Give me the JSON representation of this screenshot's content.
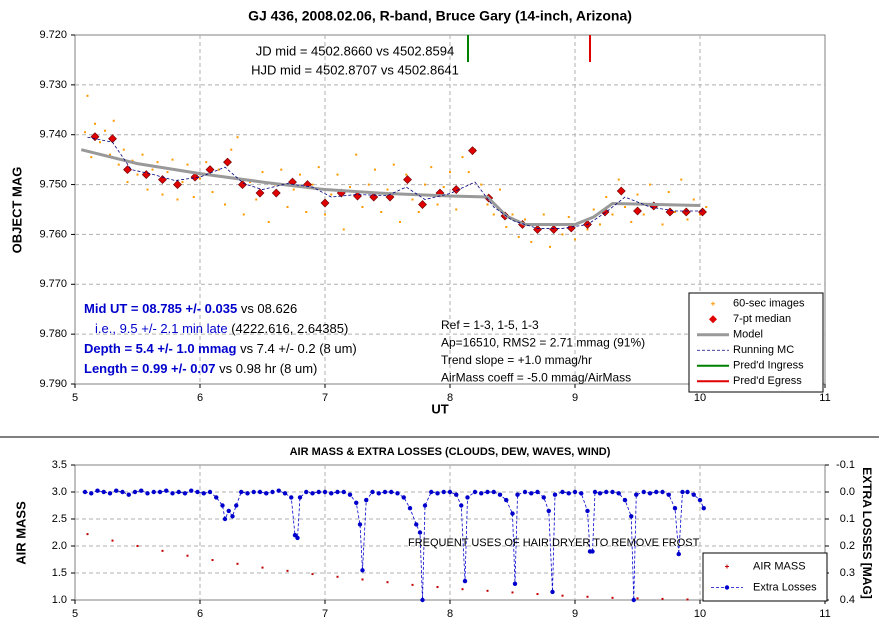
{
  "chart_data": [
    {
      "type": "scatter",
      "title": "GJ 436, 2008.02.06, R-band, Bruce Gary (14-inch, Arizona)",
      "x_label": "UT",
      "y_label": "OBJECT MAG",
      "xlim": [
        5,
        11
      ],
      "xticks": [
        5,
        6,
        7,
        8,
        9,
        10,
        11
      ],
      "ylim": [
        9.72,
        9.79
      ],
      "yreverse": true,
      "yticks": [
        {
          "value": 9.72,
          "label": "9.720"
        },
        {
          "value": 9.73,
          "label": "9.730"
        },
        {
          "value": 9.74,
          "label": "9.740"
        },
        {
          "value": 9.75,
          "label": "9.750"
        },
        {
          "value": 9.76,
          "label": "9.760"
        },
        {
          "value": 9.77,
          "label": "9.770"
        },
        {
          "value": 9.78,
          "label": "9.780"
        },
        {
          "value": 9.79,
          "label": "9.790"
        }
      ],
      "grid": true,
      "legend": "lower right",
      "annotations": [
        "JD mid = 4502.8660 vs 4502.8594",
        "HJD mid = 4502.8707 vs 4502.8641"
      ],
      "results": [
        [
          "Mid UT = 08.785 +/- 0.035",
          " vs 08.626"
        ],
        [
          "i.e., 9.5 +/- 2.1 min late",
          " (4222.616, 2.64385)"
        ],
        [
          "Depth = 5.4 +/- 1.0 mmag",
          " vs 7.4 +/- 0.2 (8 um)"
        ],
        [
          "Length = 0.99 +/- 0.07",
          " vs 0.98 hr (8 um)"
        ]
      ],
      "notes": [
        "Ref = 1-3, 1-5, 1-3",
        "Ap=16510, RMS2 = 2.71 mmag (91%)",
        "Trend slope = +1.0 mmag/hr",
        "AirMass coeff = -5.0 mmag/AirMass"
      ],
      "series": [
        {
          "name": "60-sec images",
          "color": "#ff9900",
          "style": "dots",
          "x": [
            5.08,
            5.1,
            5.13,
            5.16,
            5.2,
            5.24,
            5.28,
            5.31,
            5.35,
            5.39,
            5.42,
            5.46,
            5.5,
            5.54,
            5.58,
            5.62,
            5.66,
            5.7,
            5.74,
            5.78,
            5.82,
            5.86,
            5.9,
            5.95,
            6.0,
            6.05,
            6.1,
            6.15,
            6.2,
            6.25,
            6.3,
            6.35,
            6.4,
            6.45,
            6.5,
            6.55,
            6.6,
            6.65,
            6.7,
            6.75,
            6.8,
            6.85,
            6.9,
            6.95,
            7.0,
            7.05,
            7.1,
            7.15,
            7.2,
            7.25,
            7.3,
            7.35,
            7.4,
            7.45,
            7.5,
            7.55,
            7.6,
            7.65,
            7.7,
            7.75,
            7.8,
            7.85,
            7.9,
            7.95,
            8.0,
            8.05,
            8.1,
            8.15,
            8.2,
            8.25,
            8.3,
            8.35,
            8.4,
            8.45,
            8.5,
            8.55,
            8.6,
            8.65,
            8.7,
            8.75,
            8.8,
            8.85,
            8.9,
            8.95,
            9.0,
            9.05,
            9.1,
            9.15,
            9.2,
            9.25,
            9.3,
            9.35,
            9.4,
            9.45,
            9.5,
            9.55,
            9.6,
            9.65,
            9.7,
            9.75,
            9.8,
            9.85,
            9.9,
            9.95,
            10.0,
            10.05
          ],
          "values": [
            9.7395,
            9.7322,
            9.7445,
            9.7378,
            9.7415,
            9.7392,
            9.744,
            9.7372,
            9.746,
            9.743,
            9.7495,
            9.7452,
            9.748,
            9.744,
            9.751,
            9.747,
            9.7455,
            9.752,
            9.7475,
            9.745,
            9.753,
            9.7495,
            9.746,
            9.7525,
            9.7488,
            9.7455,
            9.7515,
            9.747,
            9.754,
            9.743,
            9.7405,
            9.756,
            9.7495,
            9.753,
            9.7475,
            9.7575,
            9.75,
            9.747,
            9.7545,
            9.751,
            9.748,
            9.7555,
            9.75,
            9.7465,
            9.756,
            9.752,
            9.748,
            9.759,
            9.7505,
            9.744,
            9.7545,
            9.75,
            9.747,
            9.7555,
            9.751,
            9.746,
            9.7575,
            9.748,
            9.753,
            9.7555,
            9.75,
            9.7465,
            9.754,
            9.7505,
            9.7475,
            9.755,
            9.7445,
            9.7475,
            9.743,
            9.75,
            9.754,
            9.756,
            9.751,
            9.7585,
            9.756,
            9.7605,
            9.757,
            9.7615,
            9.759,
            9.756,
            9.7625,
            9.758,
            9.76,
            9.7565,
            9.761,
            9.7575,
            9.759,
            9.755,
            9.758,
            9.7525,
            9.756,
            9.749,
            9.7545,
            9.7575,
            9.752,
            9.756,
            9.75,
            9.7545,
            9.758,
            9.7515,
            9.7555,
            9.749,
            9.757,
            9.753,
            9.756,
            9.7545
          ]
        },
        {
          "name": "7-pt median",
          "color": "#e00000",
          "style": "diamonds",
          "x": [
            5.16,
            5.3,
            5.42,
            5.57,
            5.7,
            5.82,
            5.96,
            6.08,
            6.22,
            6.34,
            6.48,
            6.61,
            6.74,
            6.86,
            7.0,
            7.13,
            7.26,
            7.39,
            7.52,
            7.66,
            7.78,
            7.92,
            8.05,
            8.18,
            8.31,
            8.44,
            8.58,
            8.7,
            8.83,
            8.97,
            9.1,
            9.24,
            9.37,
            9.5,
            9.63,
            9.76,
            9.89,
            10.02
          ],
          "values": [
            9.7404,
            9.7408,
            9.747,
            9.748,
            9.749,
            9.75,
            9.7485,
            9.747,
            9.7455,
            9.75,
            9.7517,
            9.7517,
            9.7495,
            9.75,
            9.7537,
            9.7517,
            9.7523,
            9.7525,
            9.7525,
            9.749,
            9.754,
            9.7517,
            9.751,
            9.7432,
            9.7527,
            9.7563,
            9.758,
            9.759,
            9.759,
            9.7587,
            9.758,
            9.7555,
            9.7513,
            9.7553,
            9.7543,
            9.7555,
            9.7555,
            9.7555
          ]
        },
        {
          "name": "Model",
          "color": "#999999",
          "style": "line",
          "x": [
            5.05,
            5.5,
            6,
            6.5,
            7,
            7.5,
            8,
            8.3,
            8.45,
            8.6,
            9.0,
            9.15,
            9.3,
            10.0
          ],
          "values": [
            9.743,
            9.7458,
            9.7478,
            9.7495,
            9.751,
            9.7518,
            9.7523,
            9.7525,
            9.7563,
            9.758,
            9.758,
            9.7565,
            9.7538,
            9.7542
          ]
        },
        {
          "name": "Running MC",
          "color": "#000080",
          "style": "dashed",
          "x": [
            5.1,
            5.3,
            5.45,
            5.6,
            5.8,
            6.0,
            6.2,
            6.35,
            6.5,
            6.7,
            6.9,
            7.05,
            7.25,
            7.5,
            7.65,
            7.8,
            8.0,
            8.2,
            8.35,
            8.5,
            8.7,
            8.9,
            9.1,
            9.25,
            9.4,
            9.6,
            9.8,
            10.02
          ],
          "values": [
            9.7405,
            9.7415,
            9.747,
            9.7478,
            9.7492,
            9.7485,
            9.7465,
            9.7498,
            9.751,
            9.7498,
            9.7505,
            9.7525,
            9.752,
            9.7522,
            9.7505,
            9.753,
            9.7518,
            9.7495,
            9.7545,
            9.7572,
            9.7588,
            9.7588,
            9.758,
            9.7555,
            9.7525,
            9.7545,
            9.7553,
            9.7553
          ]
        },
        {
          "name": "Pred'd Ingress",
          "color": "#008000",
          "style": "vline",
          "x": 8.144
        },
        {
          "name": "Pred'd Egress",
          "color": "#e00000",
          "style": "vline",
          "x": 9.12
        }
      ]
    },
    {
      "type": "scatter",
      "title": "AIR MASS & EXTRA LOSSES (CLOUDS, DEW, WAVES, WIND)",
      "y_label": "AIR MASS",
      "y2_label": "EXTRA LOSSES [MAG]",
      "xlim": [
        5,
        11
      ],
      "xticks": [
        5,
        6,
        7,
        8,
        9,
        10,
        11
      ],
      "ylim": [
        1.0,
        3.5
      ],
      "yticks": [
        {
          "value": 1.0,
          "label": "1.0"
        },
        1.5,
        {
          "value": 2.0,
          "label": "2.0"
        },
        2.5,
        {
          "value": 3.0,
          "label": "3.0"
        },
        3.5
      ],
      "y2lim": [
        -0.1,
        0.4
      ],
      "y2reverse": true,
      "y2ticks": [
        -0.1,
        {
          "value": 0,
          "label": "0.0"
        },
        0.1,
        0.2,
        0.3,
        0.4
      ],
      "grid": true,
      "legend": "lower right",
      "annotations": [
        "FREQUENT USES OF HAIR DRYER TO REMOVE FROST"
      ],
      "series": [
        {
          "name": "AIR MASS",
          "color": "#c00000",
          "style": "dots",
          "x": [
            5.1,
            5.3,
            5.5,
            5.7,
            5.9,
            6.1,
            6.3,
            6.5,
            6.7,
            6.9,
            7.1,
            7.3,
            7.5,
            7.7,
            7.9,
            8.1,
            8.3,
            8.5,
            8.7,
            8.9,
            9.1,
            9.3,
            9.5,
            9.7,
            9.9,
            10.03
          ],
          "values": [
            2.22,
            2.1,
            2.0,
            1.91,
            1.82,
            1.74,
            1.67,
            1.6,
            1.54,
            1.48,
            1.43,
            1.38,
            1.33,
            1.28,
            1.24,
            1.2,
            1.17,
            1.14,
            1.11,
            1.08,
            1.06,
            1.04,
            1.03,
            1.02,
            1.01,
            1.01
          ]
        },
        {
          "name": "Extra Losses",
          "color": "#0000cc",
          "style": "dashed-markers",
          "axis": "y2",
          "x": [
            5.08,
            5.13,
            5.18,
            5.23,
            5.28,
            5.33,
            5.38,
            5.43,
            5.48,
            5.53,
            5.58,
            5.63,
            5.68,
            5.73,
            5.78,
            5.83,
            5.88,
            5.93,
            5.98,
            6.03,
            6.08,
            6.13,
            6.18,
            6.2,
            6.23,
            6.26,
            6.29,
            6.33,
            6.38,
            6.43,
            6.48,
            6.53,
            6.58,
            6.63,
            6.68,
            6.73,
            6.76,
            6.78,
            6.8,
            6.85,
            6.9,
            6.95,
            7.0,
            7.05,
            7.1,
            7.15,
            7.2,
            7.25,
            7.28,
            7.3,
            7.33,
            7.38,
            7.43,
            7.48,
            7.53,
            7.58,
            7.63,
            7.68,
            7.73,
            7.76,
            7.78,
            7.8,
            7.85,
            7.9,
            7.95,
            8.0,
            8.05,
            8.09,
            8.12,
            8.14,
            8.2,
            8.25,
            8.3,
            8.35,
            8.4,
            8.45,
            8.5,
            8.52,
            8.54,
            8.6,
            8.65,
            8.7,
            8.75,
            8.79,
            8.82,
            8.84,
            8.9,
            8.95,
            9.0,
            9.05,
            9.1,
            9.12,
            9.14,
            9.16,
            9.2,
            9.25,
            9.3,
            9.35,
            9.4,
            9.45,
            9.47,
            9.49,
            9.55,
            9.6,
            9.65,
            9.7,
            9.75,
            9.8,
            9.83,
            9.86,
            9.9,
            9.95,
            10.0,
            10.03
          ],
          "values": [
            0.0,
            0.005,
            -0.005,
            0.0,
            0.005,
            -0.005,
            0.0,
            0.01,
            0.0,
            -0.005,
            0.005,
            0.0,
            0.0,
            -0.005,
            0.005,
            0.0,
            0.005,
            -0.005,
            0.0,
            0.005,
            0.0,
            0.02,
            0.05,
            0.1,
            0.07,
            0.09,
            0.05,
            0.0,
            0.005,
            0.0,
            0.0,
            0.005,
            0.0,
            -0.005,
            0.005,
            0.02,
            0.16,
            0.17,
            0.02,
            0.0,
            0.005,
            0.0,
            0.0,
            0.005,
            0.0,
            0.0,
            0.01,
            0.04,
            0.12,
            0.29,
            0.03,
            0.0,
            0.005,
            0.0,
            0.0,
            0.005,
            0.02,
            0.06,
            0.12,
            0.15,
            0.4,
            0.05,
            0.0,
            0.005,
            0.0,
            0.0,
            0.01,
            0.05,
            0.33,
            0.02,
            0.0,
            0.005,
            0.0,
            0.0,
            0.01,
            0.03,
            0.08,
            0.34,
            0.01,
            0.0,
            0.005,
            0.0,
            0.02,
            0.07,
            0.37,
            0.01,
            0.0,
            0.005,
            0.0,
            0.005,
            0.07,
            0.22,
            0.22,
            0.0,
            0.005,
            0.0,
            0.0,
            0.005,
            0.03,
            0.09,
            0.4,
            0.01,
            0.0,
            0.005,
            0.0,
            0.0,
            0.01,
            0.06,
            0.23,
            0.0,
            0.0,
            0.01,
            0.03,
            0.06
          ]
        }
      ]
    }
  ]
}
